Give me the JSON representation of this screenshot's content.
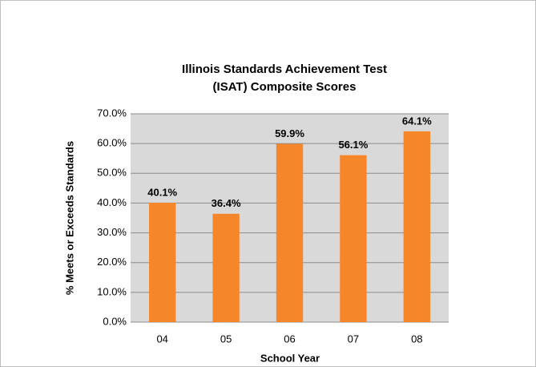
{
  "chart_data": {
    "type": "bar",
    "title": "Illinois Standards Achievement Test (ISAT) Composite Scores",
    "x_label": "School Year",
    "y_label": "% Meets or Exceeds Standards",
    "categories": [
      "04",
      "05",
      "06",
      "07",
      "08"
    ],
    "values": [
      40.1,
      36.4,
      59.9,
      56.1,
      64.1
    ],
    "value_labels": [
      "40.1%",
      "36.4%",
      "59.9%",
      "56.1%",
      "64.1%"
    ],
    "color": "#f5862a",
    "ylim": [
      0,
      70
    ],
    "yticks": [
      {
        "value": 0,
        "label": "0.0%"
      },
      {
        "value": 10,
        "label": "10.0%"
      },
      {
        "value": 20,
        "label": "20.0%"
      },
      {
        "value": 30,
        "label": "30.0%"
      },
      {
        "value": 40,
        "label": "40.0%"
      },
      {
        "value": 50,
        "label": "50.0%"
      },
      {
        "value": 60,
        "label": "60.0%"
      },
      {
        "value": 70,
        "label": "70.0%"
      }
    ],
    "grid": true
  }
}
